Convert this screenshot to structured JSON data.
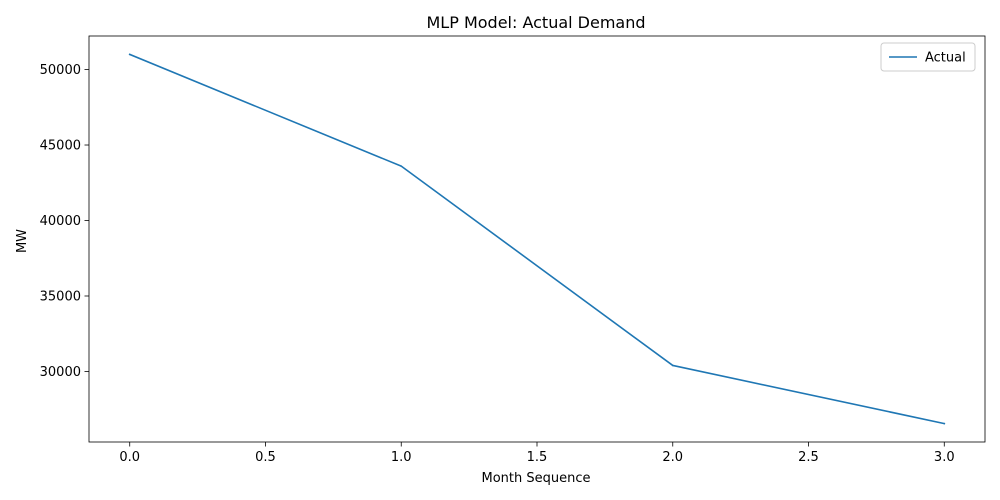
{
  "chart_data": {
    "type": "line",
    "title": "MLP Model: Actual Demand",
    "xlabel": "Month Sequence",
    "ylabel": "MW",
    "x": [
      0,
      1,
      2,
      3
    ],
    "series": [
      {
        "name": "Actual",
        "color": "#1f77b4",
        "values": [
          51000,
          43600,
          30400,
          26550
        ]
      }
    ],
    "xlim": [
      -0.15,
      3.15
    ],
    "ylim": [
      25330,
      52220
    ],
    "xticks": [
      0.0,
      0.5,
      1.0,
      1.5,
      2.0,
      2.5,
      3.0
    ],
    "xtick_labels": [
      "0.0",
      "0.5",
      "1.0",
      "1.5",
      "2.0",
      "2.5",
      "3.0"
    ],
    "yticks": [
      30000,
      35000,
      40000,
      45000,
      50000
    ],
    "ytick_labels": [
      "30000",
      "35000",
      "40000",
      "45000",
      "50000"
    ],
    "grid": false,
    "legend_position": "upper-right"
  }
}
